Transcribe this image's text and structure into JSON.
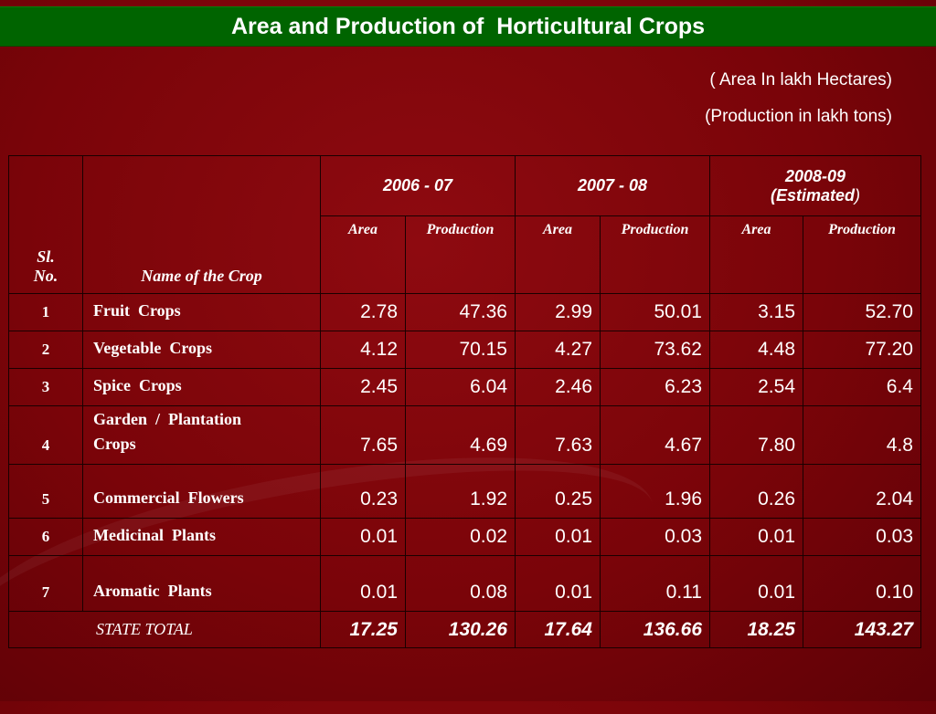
{
  "title": "Area and Production of  Horticultural Crops",
  "units": {
    "area": "( Area In lakh Hectares)",
    "production": "(Production in lakh tons)"
  },
  "table": {
    "headers": {
      "sl_line1": "Sl.",
      "sl_line2": "No.",
      "name": "Name of the Crop",
      "years": [
        {
          "label": "2006 - 07"
        },
        {
          "label": "2007 - 08"
        },
        {
          "label": "2008-09",
          "label_line2": "(Estimated",
          "label_paren": ")"
        }
      ],
      "area": "Area",
      "production": "Production"
    },
    "rows": [
      {
        "sl": "1",
        "name": "Fruit  Crops",
        "values": [
          "2.78",
          "47.36",
          "2.99",
          "50.01",
          "3.15",
          "52.70"
        ]
      },
      {
        "sl": "2",
        "name": "Vegetable  Crops",
        "values": [
          "4.12",
          "70.15",
          "4.27",
          "73.62",
          "4.48",
          "77.20"
        ]
      },
      {
        "sl": "3",
        "name": "Spice  Crops",
        "values": [
          "2.45",
          "6.04",
          "2.46",
          "6.23",
          "2.54",
          "6.4"
        ]
      },
      {
        "sl": "4",
        "name": "Garden  /  Plantation\nCrops",
        "values": [
          "7.65",
          "4.69",
          "7.63",
          "4.67",
          "7.80",
          "4.8"
        ]
      },
      {
        "sl": "5",
        "name": "Commercial  Flowers",
        "values": [
          "0.23",
          "1.92",
          "0.25",
          "1.96",
          "0.26",
          "2.04"
        ]
      },
      {
        "sl": "6",
        "name": "Medicinal  Plants",
        "values": [
          "0.01",
          "0.02",
          "0.01",
          "0.03",
          "0.01",
          "0.03"
        ]
      },
      {
        "sl": "7",
        "name": "Aromatic  Plants",
        "values": [
          "0.01",
          "0.08",
          "0.01",
          "0.11",
          "0.01",
          "0.10"
        ]
      }
    ],
    "total": {
      "label": "STATE  TOTAL",
      "values": [
        "17.25",
        "130.26",
        "17.64",
        "136.66",
        "18.25",
        "143.27"
      ]
    }
  },
  "colors": {
    "background": "#7a0409",
    "title_bar": "#006400",
    "text": "#ffffff"
  }
}
